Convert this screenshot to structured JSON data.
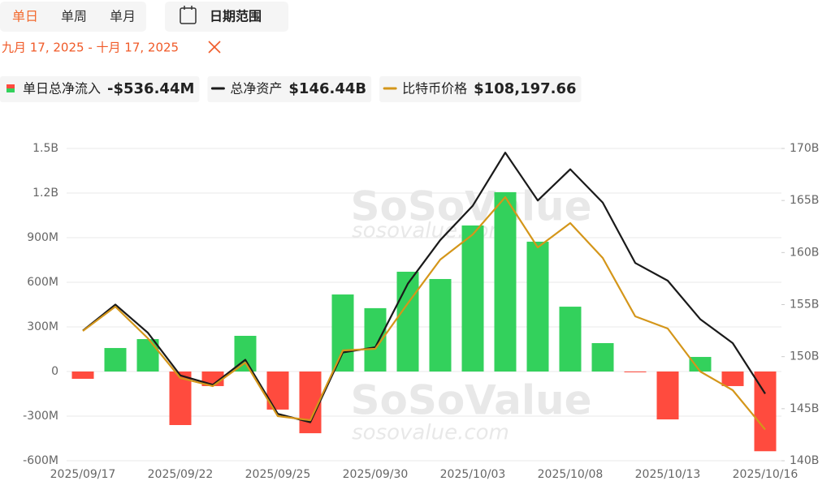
{
  "ui": {
    "tabs": [
      "单日",
      "单周",
      "单月"
    ],
    "date_button": "日期范围",
    "date_range": "九月 17, 2025 - 十月 17, 2025"
  },
  "chart_data": {
    "type": "bar",
    "watermark": [
      "SoSoValue",
      "sosovalue.com"
    ],
    "categories": [
      "2025/09/17",
      null,
      null,
      "2025/09/22",
      null,
      null,
      "2025/09/25",
      null,
      null,
      "2025/09/30",
      null,
      null,
      "2025/10/03",
      null,
      null,
      "2025/10/08",
      null,
      null,
      "2025/10/13",
      null,
      null,
      "2025/10/16"
    ],
    "series": [
      {
        "name": "单日总净流入",
        "legend_value": "-$536.44M",
        "type": "bar",
        "color": "#33d15c",
        "negative_color": "#ff4b3e",
        "values": [
          -49,
          158,
          218,
          -360,
          -98,
          240,
          -256,
          -415,
          518,
          426,
          671,
          622,
          982,
          1206,
          873,
          436,
          191,
          -4,
          -322,
          98,
          -98,
          -536
        ]
      },
      {
        "name": "总净资产",
        "legend_value": "$146.44B",
        "type": "line",
        "axis": "y2",
        "color": "#1a1a1a",
        "values": [
          152.5,
          155.0,
          152.3,
          148.2,
          147.3,
          149.7,
          144.5,
          143.7,
          150.4,
          150.9,
          157.0,
          161.2,
          164.5,
          169.6,
          165.0,
          168.0,
          164.8,
          159.0,
          157.3,
          153.6,
          151.3,
          146.44
        ]
      },
      {
        "name": "比特币价格",
        "legend_value": "$108,197.66",
        "type": "line",
        "axis": "y3",
        "color": "#d4961a",
        "values": [
          115143,
          116857,
          114629,
          111829,
          111257,
          112914,
          109143,
          108857,
          113771,
          113886,
          117086,
          120171,
          121943,
          124571,
          121029,
          122743,
          120286,
          116171,
          115314,
          112286,
          110971,
          108197.66
        ]
      }
    ],
    "ylim": [
      -600,
      1500
    ],
    "yticks": [
      {
        "value": -600,
        "label": "-600M"
      },
      {
        "value": -300,
        "label": "-300M"
      },
      0,
      {
        "value": 300,
        "label": "300M"
      },
      {
        "value": 600,
        "label": "600M"
      },
      {
        "value": 900,
        "label": "900M"
      },
      {
        "value": 1200,
        "label": "1.2B"
      },
      {
        "value": 1500,
        "label": "1.5B"
      }
    ],
    "y2lim": [
      140,
      170
    ],
    "y2ticks": [
      {
        "value": 140,
        "label": "140B"
      },
      {
        "value": 145,
        "label": "145B"
      },
      {
        "value": 150,
        "label": "150B"
      },
      {
        "value": 155,
        "label": "155B"
      },
      {
        "value": 160,
        "label": "160B"
      },
      {
        "value": 165,
        "label": "165B"
      },
      {
        "value": 170,
        "label": "170B"
      }
    ],
    "y3lim": [
      106000,
      128000
    ],
    "grid": true
  }
}
